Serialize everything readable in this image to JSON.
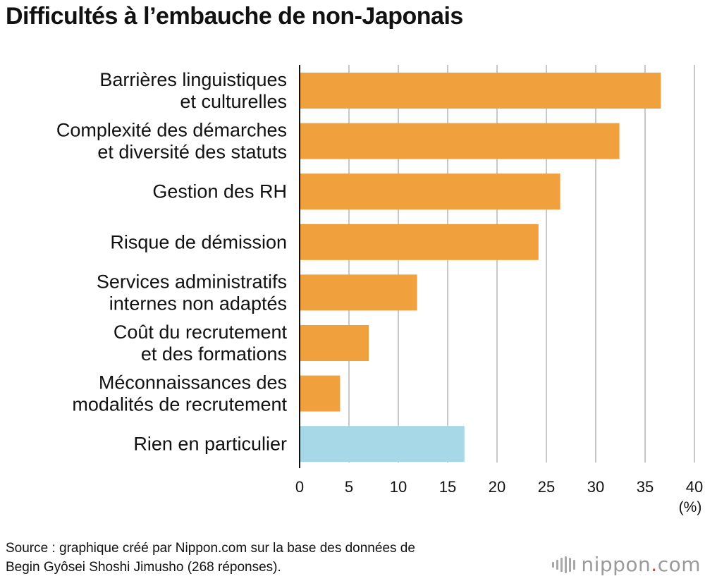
{
  "chart_data": {
    "type": "bar",
    "orientation": "horizontal",
    "title": "Difficultés à l’embauche de non-Japonais",
    "categories": [
      [
        "Barrières linguistiques",
        "et culturelles"
      ],
      [
        "Complexité des démarches",
        "et diversité des statuts"
      ],
      [
        "Gestion des RH"
      ],
      [
        "Risque de démission"
      ],
      [
        "Services administratifs",
        "internes non adaptés"
      ],
      [
        "Coût du recrutement",
        "et des formations"
      ],
      [
        "Méconnaissances des",
        "modalités de recrutement"
      ],
      [
        "Rien en particulier"
      ]
    ],
    "values": [
      36.6,
      32.4,
      26.4,
      24.2,
      11.9,
      7.0,
      4.1,
      16.7
    ],
    "bar_colors": [
      "#f0a03c",
      "#f0a03c",
      "#f0a03c",
      "#f0a03c",
      "#f0a03c",
      "#f0a03c",
      "#f0a03c",
      "#a6d8e8"
    ],
    "xlim": [
      0,
      40
    ],
    "xticks": [
      0,
      5,
      10,
      15,
      20,
      25,
      30,
      35,
      40
    ],
    "xlabel": "(%)",
    "ylabel": "",
    "grid": true,
    "gridline_color": "#c8c8c8"
  },
  "source": {
    "line1": "Source : graphique créé par Nippon.com sur la base des données de",
    "line2": "Begin Gyôsei Shoshi Jimusho (268 réponses)."
  },
  "logo": {
    "text": "nippon",
    "dot": ".",
    "suffix": "com"
  }
}
